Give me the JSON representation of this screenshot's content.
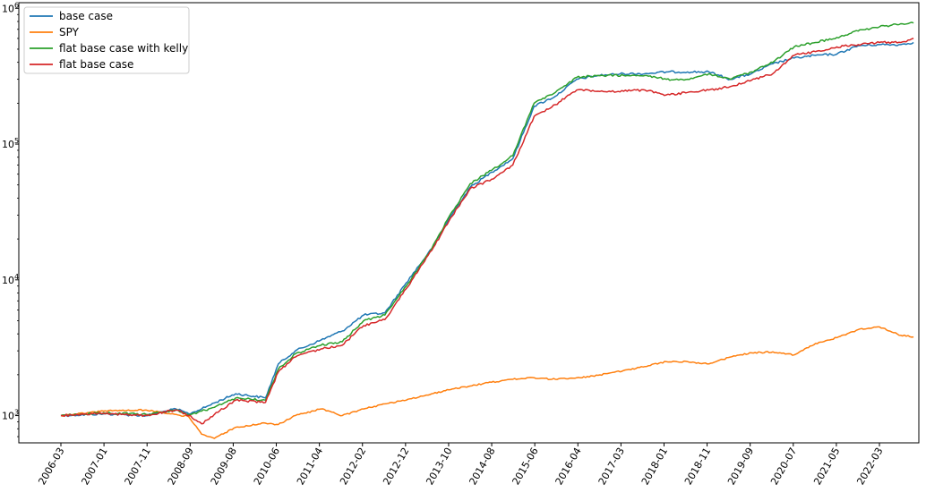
{
  "chart_data": {
    "type": "line",
    "title": "",
    "xlabel": "",
    "ylabel": "",
    "y_scale": "log",
    "ylim": [
      630,
      1100000
    ],
    "grid": false,
    "legend_position": "top-left",
    "y_ticks": [
      {
        "value": 1000,
        "base": "10",
        "exp": "3"
      },
      {
        "value": 10000,
        "base": "10",
        "exp": "4"
      },
      {
        "value": 100000,
        "base": "10",
        "exp": "5"
      },
      {
        "value": 1000000,
        "base": "10",
        "exp": "6"
      }
    ],
    "x_ticks": [
      "2006-03",
      "2007-01",
      "2007-11",
      "2008-09",
      "2009-08",
      "2010-06",
      "2011-04",
      "2012-02",
      "2012-12",
      "2013-10",
      "2014-08",
      "2015-06",
      "2016-04",
      "2017-03",
      "2018-01",
      "2018-11",
      "2019-09",
      "2020-07",
      "2021-05",
      "2022-03"
    ],
    "x": [
      "2006-03",
      "2007-01",
      "2007-11",
      "2008-06",
      "2008-09",
      "2008-12",
      "2009-03",
      "2009-08",
      "2010-03",
      "2010-06",
      "2010-10",
      "2011-04",
      "2011-09",
      "2012-02",
      "2012-07",
      "2012-12",
      "2013-06",
      "2013-10",
      "2014-03",
      "2014-08",
      "2015-01",
      "2015-06",
      "2015-11",
      "2016-04",
      "2016-09",
      "2017-03",
      "2017-08",
      "2018-01",
      "2018-06",
      "2018-11",
      "2019-04",
      "2019-09",
      "2020-02",
      "2020-07",
      "2020-12",
      "2021-05",
      "2021-10",
      "2022-03",
      "2022-08",
      "2022-11"
    ],
    "series": [
      {
        "name": "base case",
        "color": "#1f77b4",
        "values": [
          1000,
          1030,
          1000,
          1120,
          1030,
          1120,
          1240,
          1450,
          1350,
          2400,
          3000,
          3600,
          4200,
          5500,
          5700,
          9500,
          17000,
          28000,
          48000,
          62000,
          78000,
          190000,
          225000,
          300000,
          320000,
          330000,
          330000,
          340000,
          340000,
          340000,
          300000,
          330000,
          390000,
          430000,
          450000,
          460000,
          530000,
          540000,
          540000,
          560000
        ]
      },
      {
        "name": "SPY",
        "color": "#ff7f0e",
        "values": [
          1000,
          1080,
          1100,
          1020,
          980,
          730,
          680,
          820,
          880,
          860,
          1000,
          1120,
          1000,
          1120,
          1220,
          1300,
          1450,
          1550,
          1650,
          1760,
          1850,
          1900,
          1850,
          1900,
          1980,
          2150,
          2300,
          2500,
          2500,
          2400,
          2700,
          2900,
          2950,
          2800,
          3400,
          3750,
          4300,
          4500,
          3900,
          3800
        ]
      },
      {
        "name": "flat base case with kelly",
        "color": "#2ca02c",
        "values": [
          1000,
          1050,
          1020,
          1100,
          1010,
          1080,
          1150,
          1350,
          1300,
          2200,
          2850,
          3300,
          3500,
          5000,
          5500,
          9000,
          17000,
          29000,
          51000,
          64000,
          82000,
          200000,
          240000,
          310000,
          320000,
          320000,
          320000,
          300000,
          300000,
          330000,
          300000,
          340000,
          400000,
          520000,
          560000,
          610000,
          680000,
          730000,
          770000,
          780000
        ]
      },
      {
        "name": "flat base case",
        "color": "#d62728",
        "values": [
          1000,
          1040,
          1000,
          1100,
          1000,
          870,
          1020,
          1300,
          1250,
          2100,
          2700,
          3100,
          3300,
          4600,
          5100,
          8600,
          16500,
          27000,
          47000,
          55000,
          70000,
          160000,
          195000,
          250000,
          245000,
          245000,
          250000,
          230000,
          240000,
          250000,
          265000,
          295000,
          330000,
          450000,
          480000,
          520000,
          540000,
          560000,
          560000,
          600000
        ]
      }
    ]
  }
}
